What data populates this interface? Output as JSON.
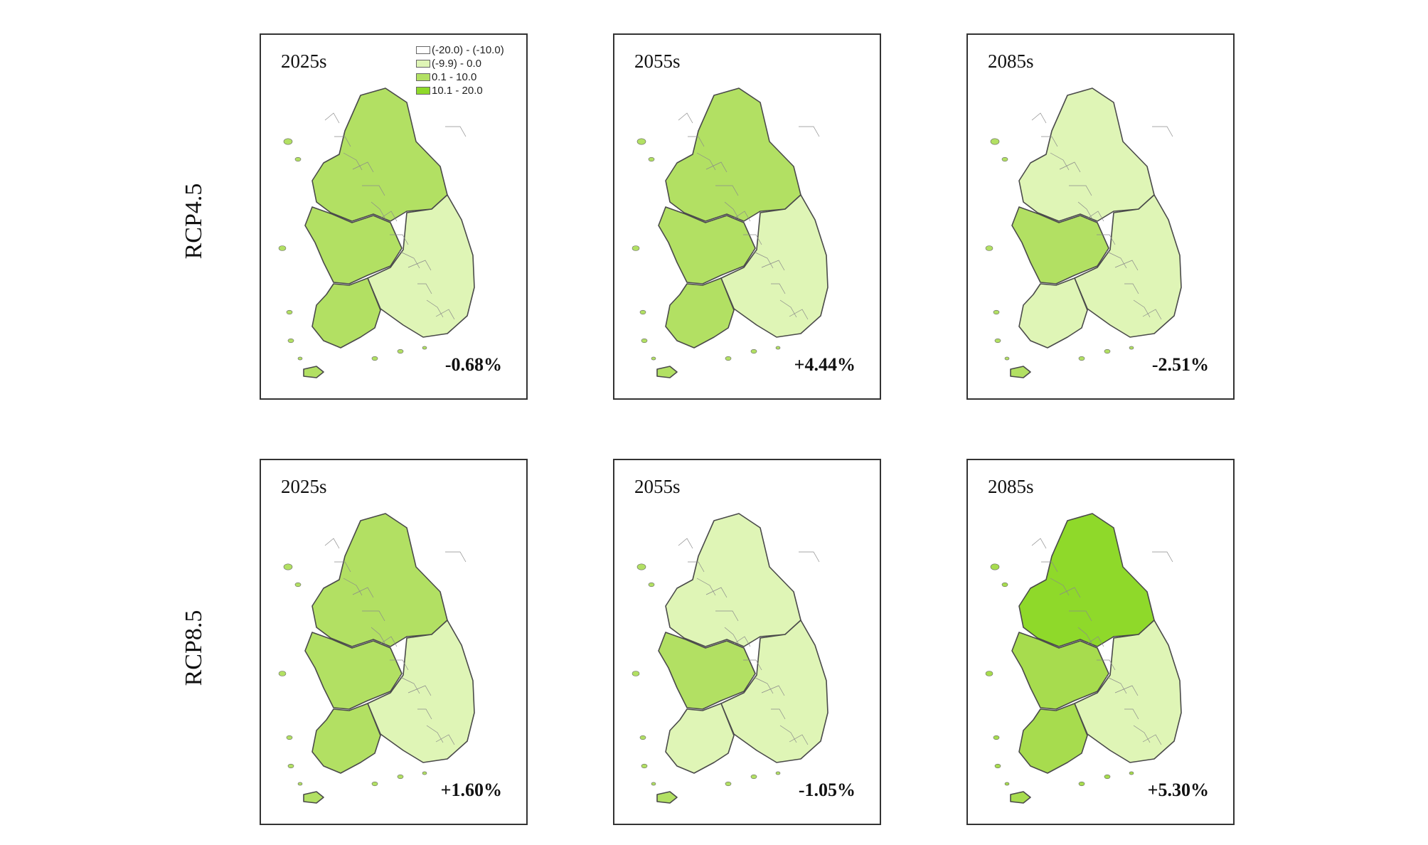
{
  "legend": {
    "items": [
      {
        "label": "(-20.0) - (-10.0)",
        "color": "#ffffff"
      },
      {
        "label": "(-9.9) - 0.0",
        "color": "#dff5b6"
      },
      {
        "label": "0.1 - 10.0",
        "color": "#b2e063"
      },
      {
        "label": "10.1 - 20.0",
        "color": "#8fd92a"
      }
    ]
  },
  "rows": [
    {
      "label": "RCP4.5",
      "panels": [
        {
          "period": "2025s",
          "change": "-0.68%",
          "scheme": "n"
        },
        {
          "period": "2055s",
          "change": "+4.44%",
          "scheme": "n"
        },
        {
          "period": "2085s",
          "change": "-2.51%",
          "scheme": "nw"
        }
      ]
    },
    {
      "label": "RCP8.5",
      "panels": [
        {
          "period": "2025s",
          "change": "+1.60%",
          "scheme": "n"
        },
        {
          "period": "2055s",
          "change": "-1.05%",
          "scheme": "nw"
        },
        {
          "period": "2085s",
          "change": "+5.30%",
          "scheme": "dark"
        }
      ]
    }
  ]
}
